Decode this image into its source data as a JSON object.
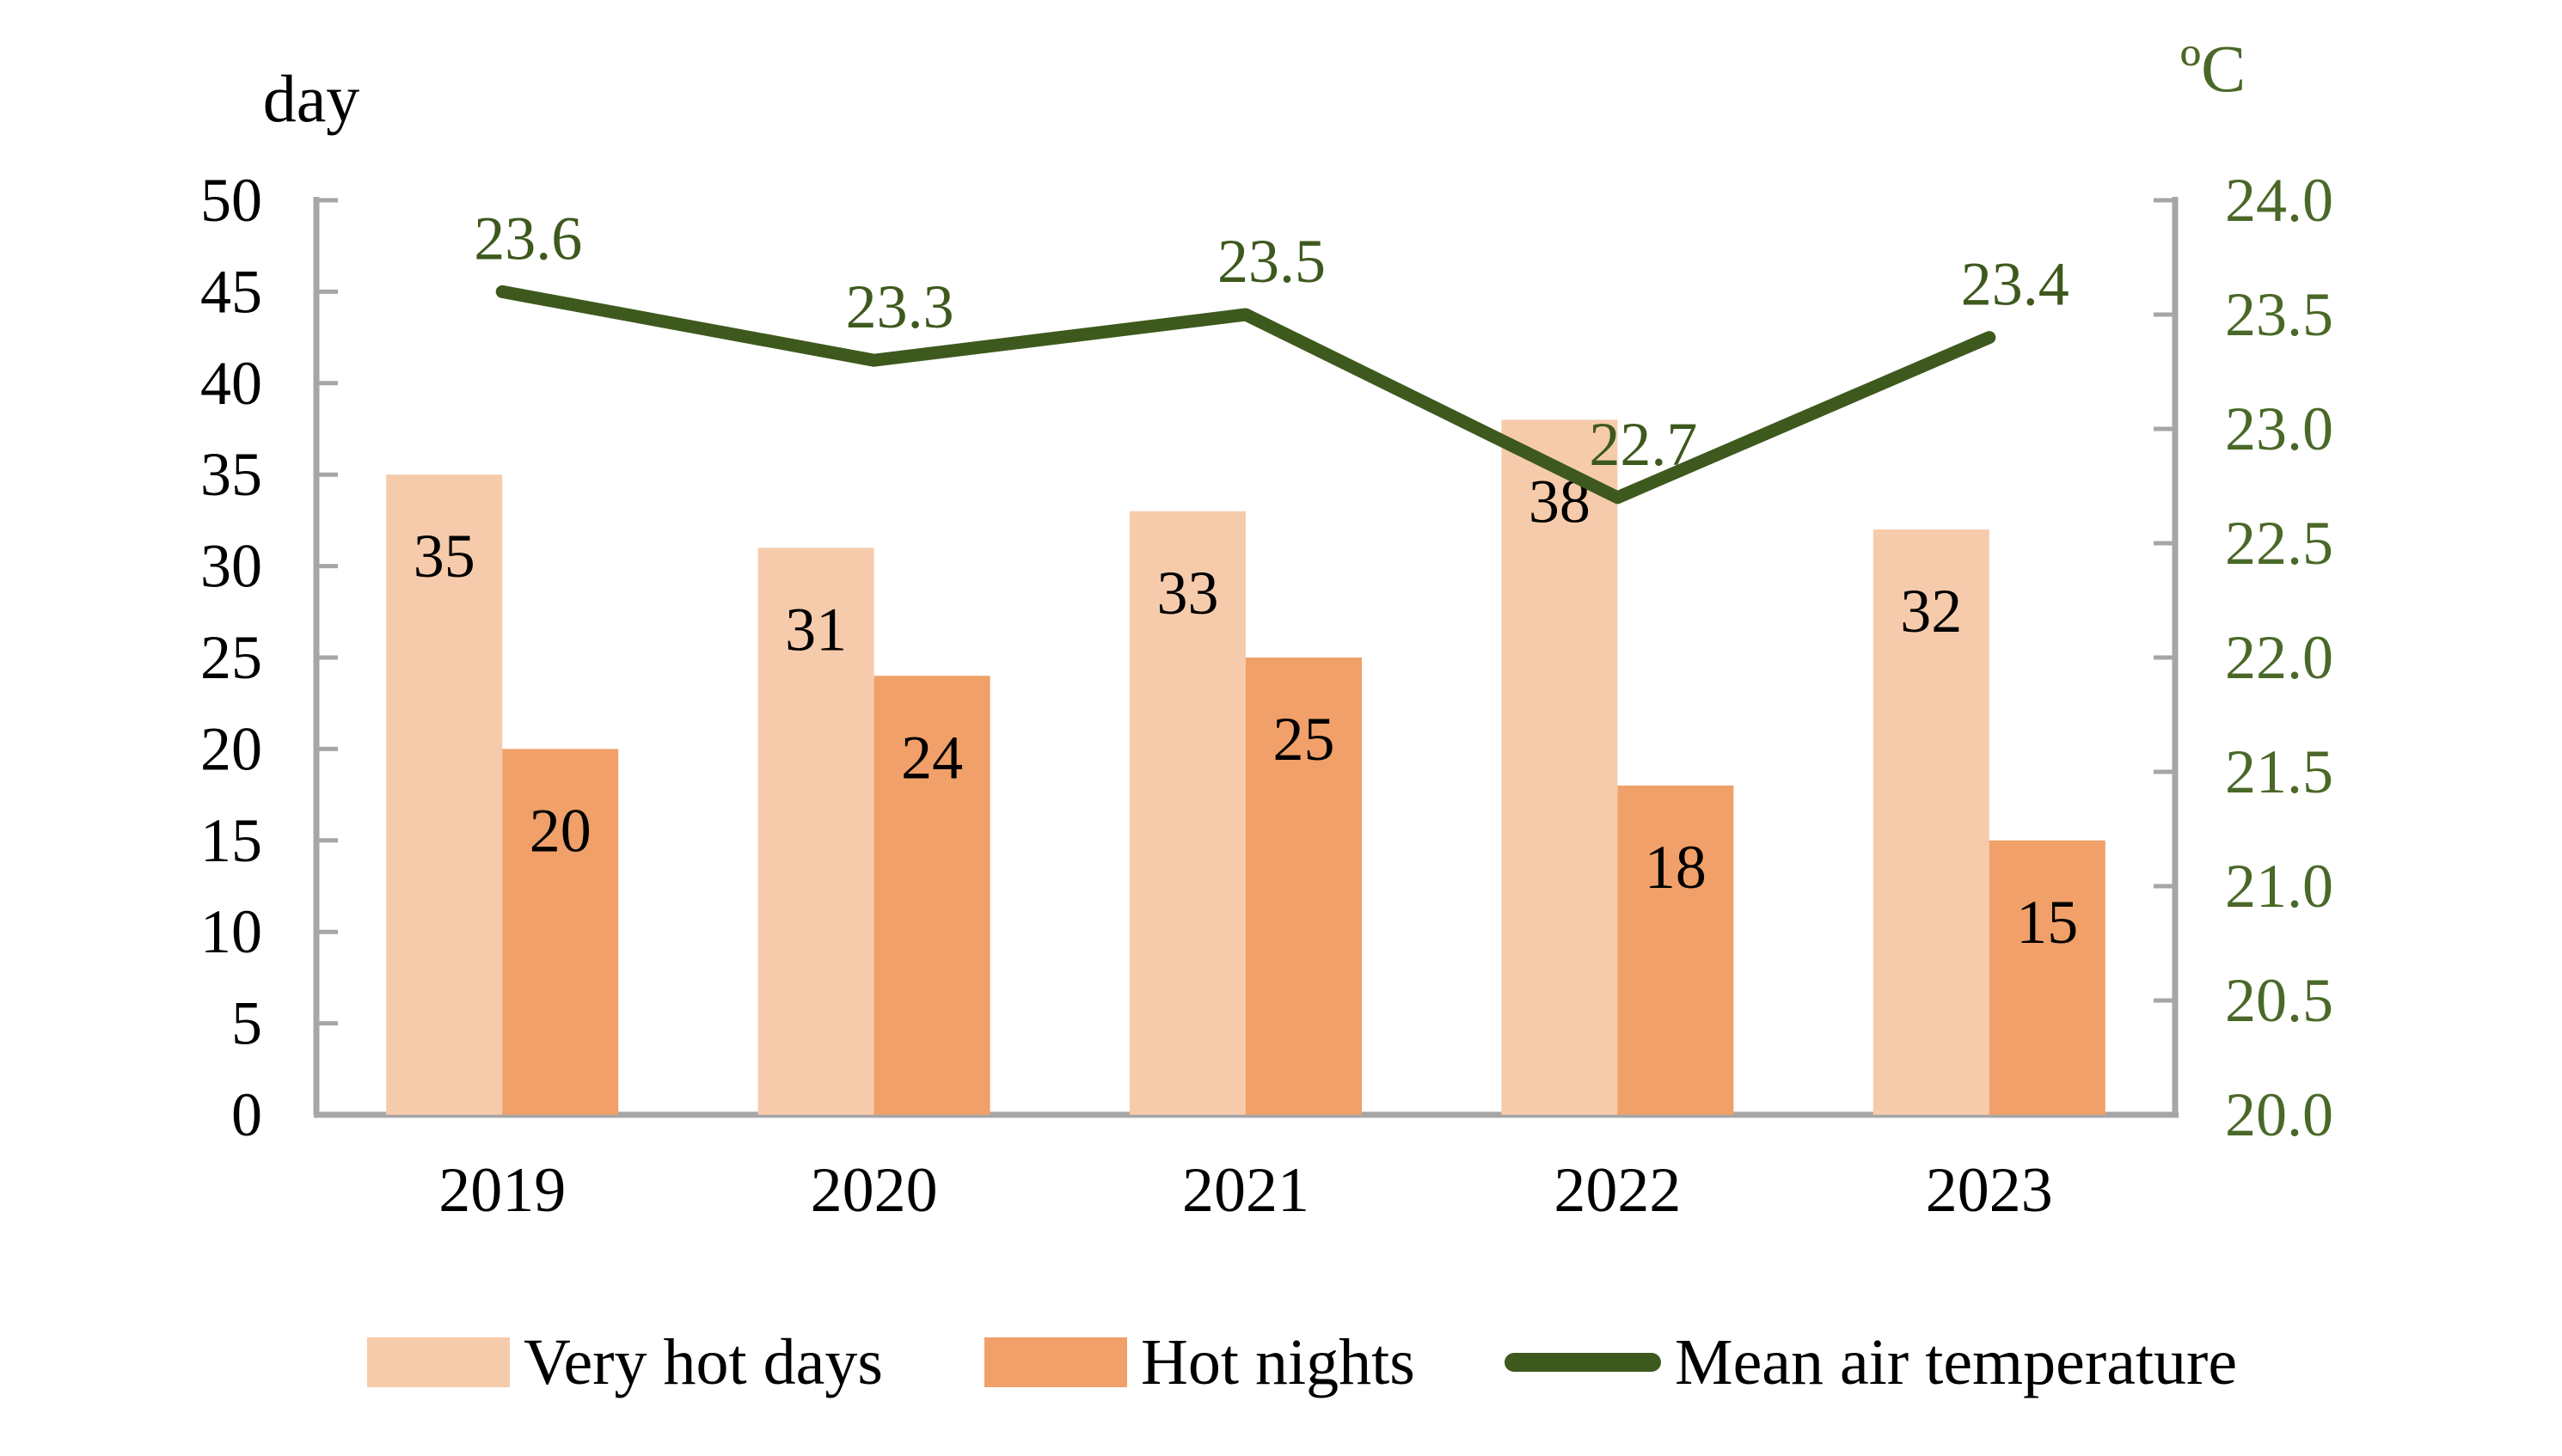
{
  "page": {
    "background": "#FFFFFF"
  },
  "chart_data": {
    "type": "combo-bar-line",
    "title": "",
    "categories": [
      "2019",
      "2020",
      "2021",
      "2022",
      "2023"
    ],
    "series": [
      {
        "name": "Very hot days",
        "type": "bar",
        "axis": "left",
        "color": "#F6CBAC",
        "values": [
          35,
          31,
          33,
          38,
          32
        ],
        "data_labels": [
          "35",
          "31",
          "33",
          "38",
          "32"
        ],
        "label_color": "#000000"
      },
      {
        "name": "Hot nights",
        "type": "bar",
        "axis": "left",
        "color": "#F0A068",
        "values": [
          20,
          24,
          25,
          18,
          15
        ],
        "data_labels": [
          "20",
          "24",
          "25",
          "18",
          "15"
        ],
        "label_color": "#000000"
      },
      {
        "name": "Mean air temperature",
        "type": "line",
        "axis": "right",
        "color": "#3E591D",
        "values": [
          23.6,
          23.3,
          23.5,
          22.7,
          23.4
        ],
        "data_labels": [
          "23.6",
          "23.3",
          "23.5",
          "22.7",
          "23.4"
        ],
        "label_color": "#3E591D"
      }
    ],
    "left_axis": {
      "title": "day",
      "min": 0,
      "max": 50,
      "step": 5,
      "tick_labels": [
        "0",
        "5",
        "10",
        "15",
        "20",
        "25",
        "30",
        "35",
        "40",
        "45",
        "50"
      ],
      "label_color": "#000000"
    },
    "right_axis": {
      "title": "ºC",
      "min": 20,
      "max": 24,
      "step": 0.5,
      "tick_labels": [
        "20.0",
        "20.5",
        "21.0",
        "21.5",
        "22.0",
        "22.5",
        "23.0",
        "23.5",
        "24.0"
      ],
      "label_color": "#4A6828"
    },
    "axis_color": "#A6A6A6",
    "grid": false,
    "legend_position": "bottom"
  }
}
